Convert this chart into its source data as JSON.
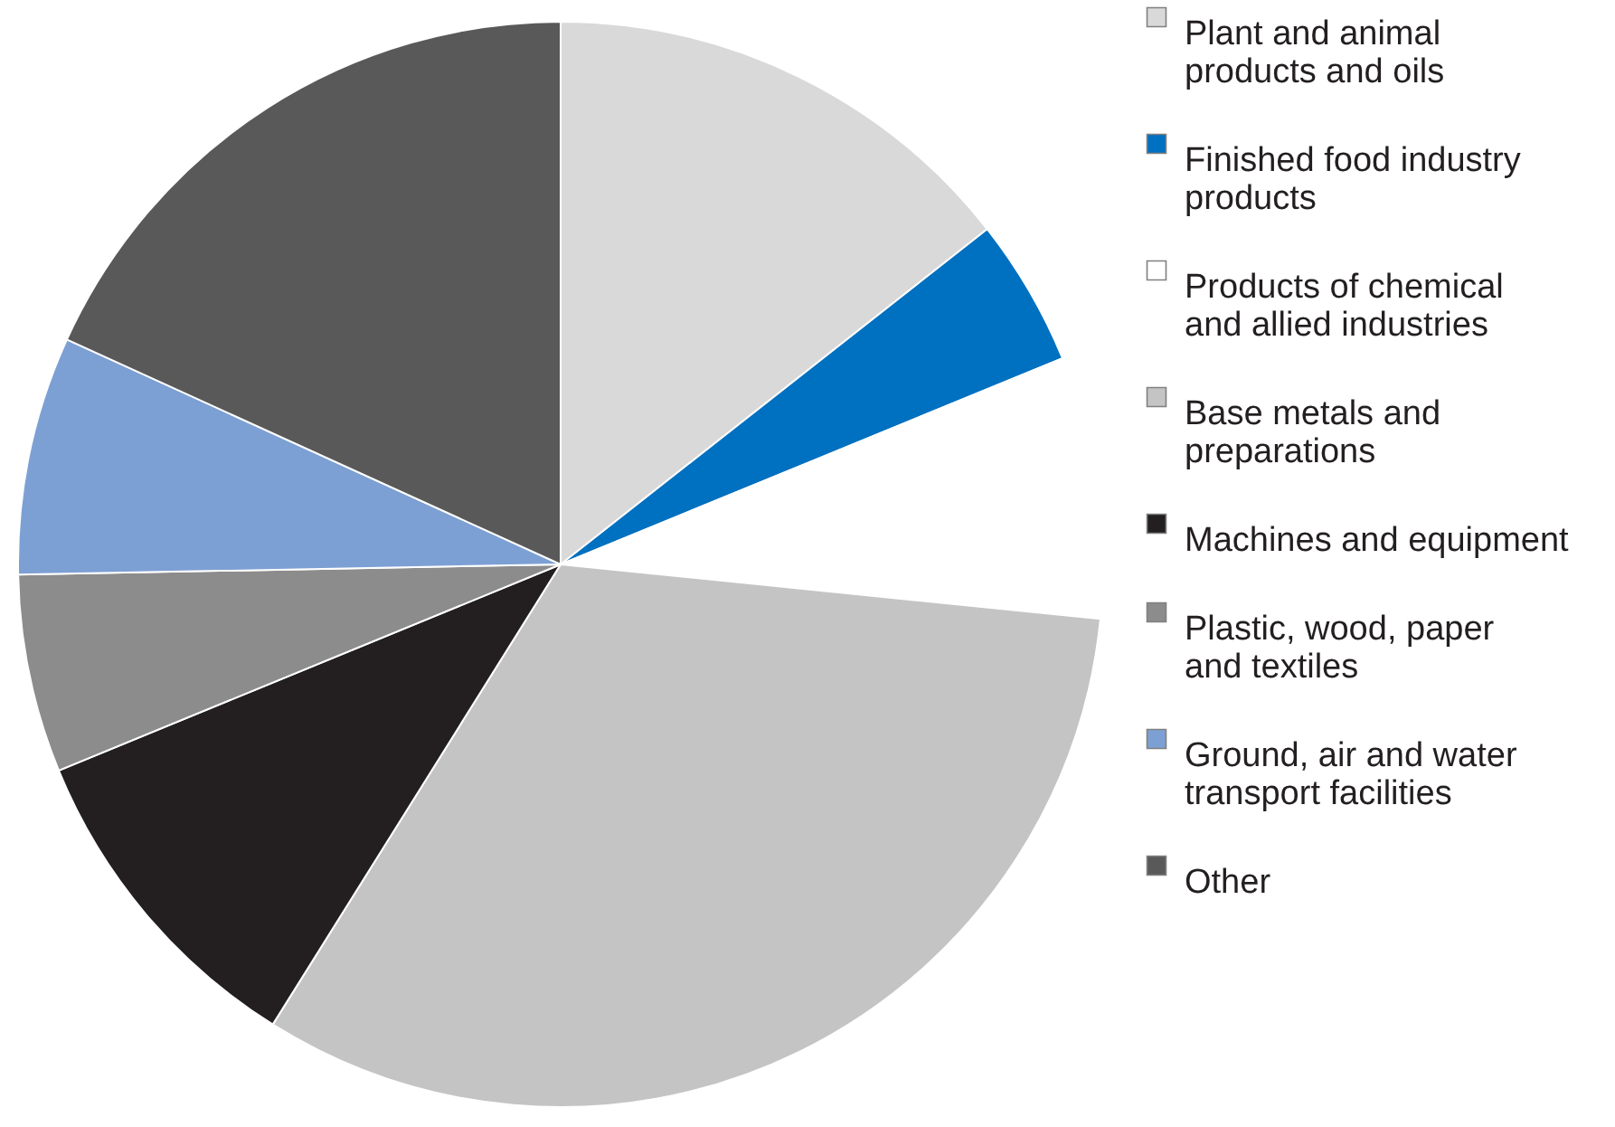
{
  "chart_data": {
    "type": "pie",
    "categories": [
      "Plant and animal products and oils",
      "Finished food industry products",
      "Products of chemical and allied industries",
      "Base metals and preparations",
      "Machines and equipment",
      "Plastic, wood, paper and textiles",
      "Ground, air and water transport facilities",
      "Other"
    ],
    "values": [
      14.4,
      4.4,
      7.8,
      32.3,
      9.9,
      5.9,
      7.1,
      18.2
    ],
    "colors": [
      "#d9d9d9",
      "#0070c0",
      "#ffffff",
      "#c4c4c4",
      "#231f20",
      "#8c8c8c",
      "#7da0d4",
      "#595959"
    ],
    "legend": "right"
  }
}
